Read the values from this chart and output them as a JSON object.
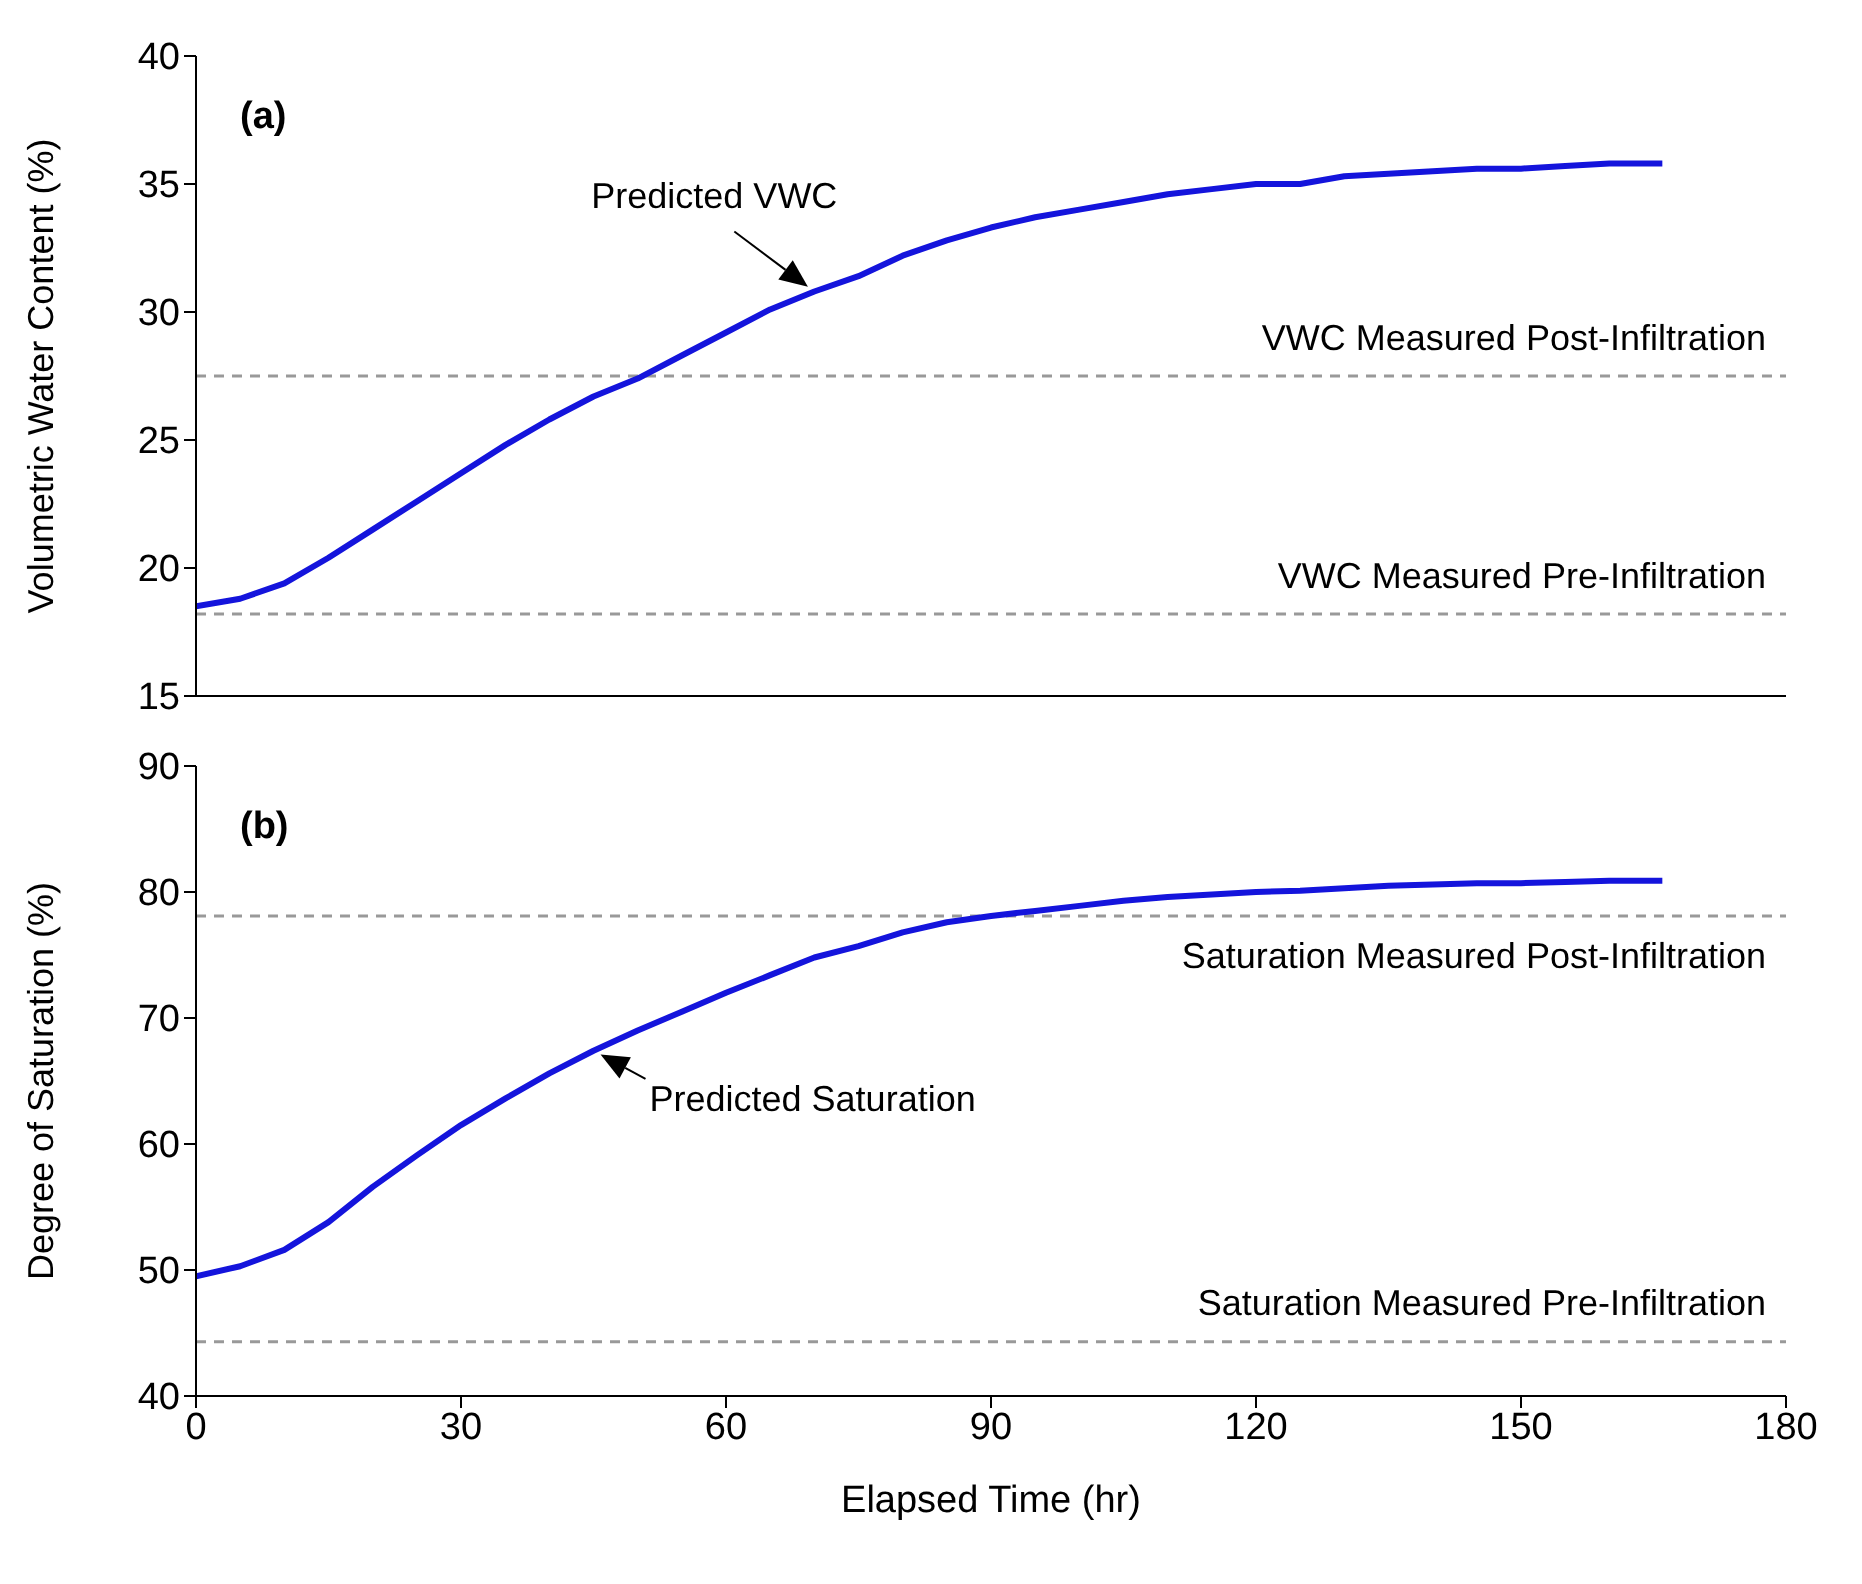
{
  "chart_data": [
    {
      "type": "line",
      "ylabel": "Volumetric Water Content (%)",
      "tick_labels": "y",
      "x": [
        0,
        5,
        10,
        15,
        20,
        25,
        30,
        35,
        40,
        45,
        50,
        55,
        60,
        65,
        70,
        75,
        80,
        85,
        90,
        95,
        100,
        105,
        110,
        115,
        120,
        125,
        130,
        135,
        140,
        145,
        150,
        155,
        160,
        166
      ],
      "series": [
        {
          "color": "#1414dc",
          "values": [
            18.5,
            18.8,
            19.4,
            20.4,
            21.5,
            22.6,
            23.7,
            24.8,
            25.8,
            26.7,
            27.4,
            28.3,
            29.2,
            30.1,
            30.8,
            31.4,
            32.2,
            32.8,
            33.3,
            33.7,
            34.0,
            34.3,
            34.6,
            34.8,
            35.0,
            35.0,
            35.3,
            35.4,
            35.5,
            35.6,
            35.6,
            35.7,
            35.8,
            35.8
          ]
        }
      ],
      "xlim": [
        0,
        180
      ],
      "xticks": [
        0,
        30,
        60,
        90,
        120,
        150,
        180
      ],
      "ylim": [
        15,
        40
      ],
      "yticks": [
        15,
        20,
        25,
        30,
        35,
        40
      ],
      "ref_lines": [
        {
          "axis": "y",
          "value": 27.5,
          "label": "VWC Measured Post-Infiltration",
          "color": "#999999",
          "line_style": "dashed"
        },
        {
          "axis": "y",
          "value": 18.2,
          "label": "VWC Measured Pre-Infiltration",
          "color": "#999999",
          "line_style": "dashed"
        }
      ],
      "annotations": [
        "(a)",
        {
          "text": "Predicted VWC",
          "x": 70,
          "y": 30.8
        }
      ]
    },
    {
      "type": "line",
      "ylabel": "Degree of Saturation (%)",
      "xlabel": "Elapsed Time (hr)",
      "x": [
        0,
        5,
        10,
        15,
        20,
        25,
        30,
        35,
        40,
        45,
        50,
        55,
        60,
        65,
        70,
        75,
        80,
        85,
        90,
        95,
        100,
        105,
        110,
        115,
        120,
        125,
        130,
        135,
        140,
        145,
        150,
        155,
        160,
        166
      ],
      "series": [
        {
          "color": "#1414dc",
          "values": [
            49.5,
            50.3,
            51.6,
            53.8,
            56.6,
            59.1,
            61.5,
            63.6,
            65.6,
            67.4,
            69.0,
            70.5,
            72.0,
            73.4,
            74.8,
            75.7,
            76.8,
            77.6,
            78.1,
            78.5,
            78.9,
            79.3,
            79.6,
            79.8,
            80.0,
            80.1,
            80.3,
            80.5,
            80.6,
            80.7,
            80.7,
            80.8,
            80.9,
            80.9
          ]
        }
      ],
      "xlim": [
        0,
        180
      ],
      "xticks": [
        0,
        30,
        60,
        90,
        120,
        150,
        180
      ],
      "ylim": [
        40,
        90
      ],
      "yticks": [
        40,
        50,
        60,
        70,
        80,
        90
      ],
      "ref_lines": [
        {
          "axis": "y",
          "value": 78.1,
          "label": "Saturation Measured Post-Infiltration",
          "color": "#999999",
          "line_style": "dashed"
        },
        {
          "axis": "y",
          "value": 44.3,
          "label": "Saturation Measured Pre-Infiltration",
          "color": "#999999",
          "line_style": "dashed"
        }
      ],
      "annotations": [
        "(b)",
        {
          "text": "Predicted Saturation",
          "x": 45,
          "y": 67.4
        }
      ]
    }
  ]
}
